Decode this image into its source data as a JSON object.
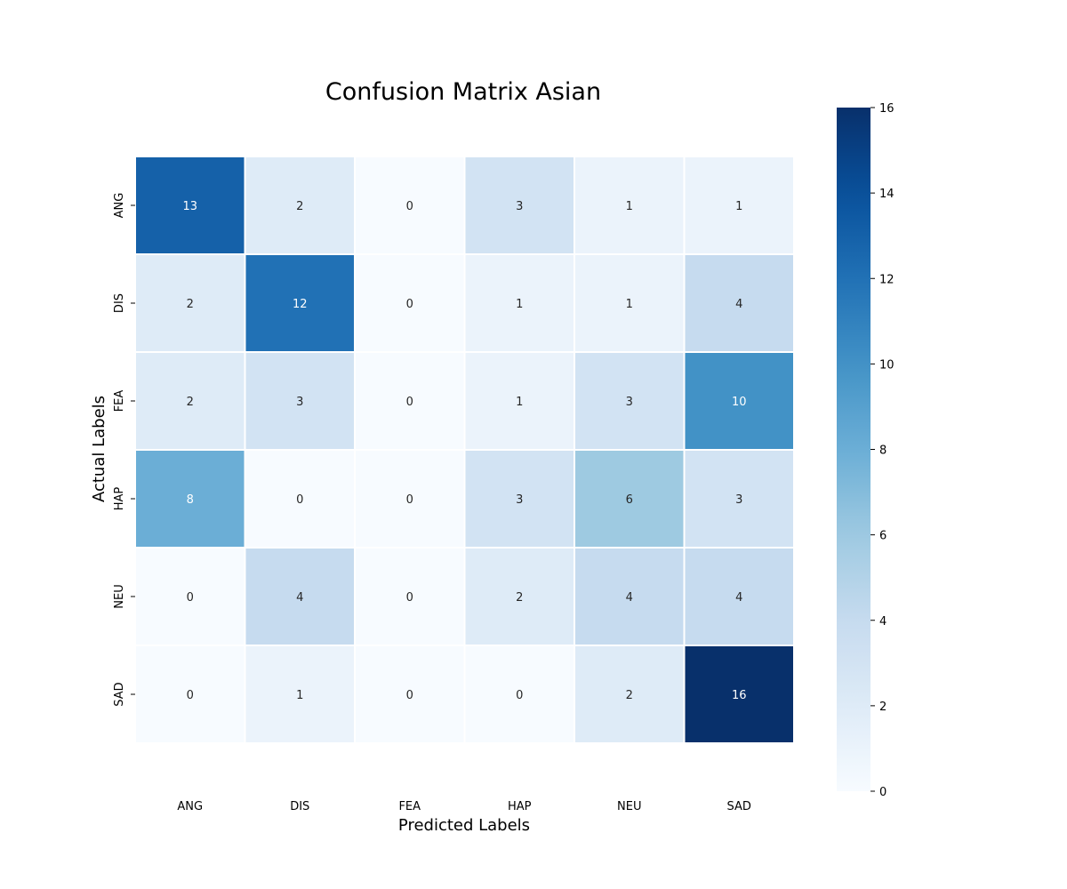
{
  "chart_data": {
    "type": "heatmap",
    "title": "Confusion Matrix Asian",
    "xlabel": "Predicted Labels",
    "ylabel": "Actual Labels",
    "x_categories": [
      "ANG",
      "DIS",
      "FEA",
      "HAP",
      "NEU",
      "SAD"
    ],
    "y_categories": [
      "ANG",
      "DIS",
      "FEA",
      "HAP",
      "NEU",
      "SAD"
    ],
    "values": [
      [
        13,
        2,
        0,
        3,
        1,
        1
      ],
      [
        2,
        12,
        0,
        1,
        1,
        4
      ],
      [
        2,
        3,
        0,
        1,
        3,
        10
      ],
      [
        8,
        0,
        0,
        3,
        6,
        3
      ],
      [
        0,
        4,
        0,
        2,
        4,
        4
      ],
      [
        0,
        1,
        0,
        0,
        2,
        16
      ]
    ],
    "colorbar": {
      "min": 0,
      "max": 16,
      "ticks": [
        0,
        2,
        4,
        6,
        8,
        10,
        12,
        14,
        16
      ]
    },
    "colormap": "Blues",
    "colors": {
      "low": "#f7fbff",
      "high": "#08306b",
      "cell_border": "#ffffff",
      "text_dark": "#262626",
      "text_light": "#ffffff"
    }
  }
}
